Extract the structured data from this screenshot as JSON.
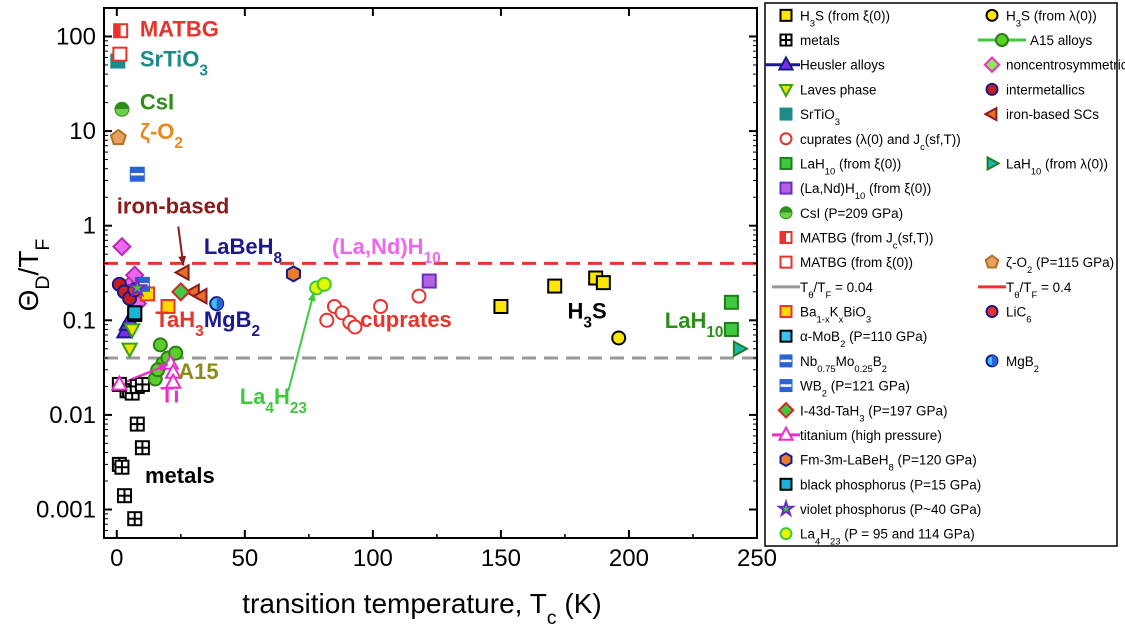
{
  "chart_data": {
    "type": "scatter",
    "xlabel": "transition temperature, T_c (K)",
    "ylabel": "Θ_D/T_F",
    "xlim": [
      -5,
      250
    ],
    "ylim": [
      0.0005,
      200
    ],
    "xscale": "linear",
    "yscale": "log",
    "xticks": [
      0,
      50,
      100,
      150,
      200,
      250
    ],
    "yticks": [
      0.001,
      0.01,
      0.1,
      1,
      10,
      100
    ],
    "ytick_labels": [
      "0.001",
      "0.01",
      "0.1",
      "1",
      "10",
      "100"
    ],
    "legend_position": "right",
    "reference_lines": [
      {
        "label": "T_θ/T_F = 0.04",
        "y": 0.04,
        "color": "#999999",
        "style": "dashed"
      },
      {
        "label": "T_θ/T_F = 0.4",
        "y": 0.4,
        "color": "#e8322b",
        "style": "dashed"
      }
    ],
    "series": [
      {
        "name": "H3S (from ξ(0))",
        "marker": "square",
        "fill": "#ffe600",
        "stroke": "#000000",
        "points": [
          [
            150,
            0.14
          ],
          [
            171,
            0.23
          ],
          [
            187,
            0.28
          ],
          [
            190,
            0.25
          ]
        ]
      },
      {
        "name": "H3S (from λ(0))",
        "marker": "circle",
        "fill": "#ffe600",
        "stroke": "#000000",
        "points": [
          [
            196,
            0.065
          ]
        ]
      },
      {
        "name": "metals",
        "marker": "grid",
        "fill": "#000000",
        "stroke": "#000000",
        "points": [
          [
            1,
            0.003
          ],
          [
            2,
            0.0028
          ],
          [
            3,
            0.0014
          ],
          [
            7,
            0.0008
          ],
          [
            8,
            0.008
          ],
          [
            10,
            0.0045
          ],
          [
            4,
            0.018
          ],
          [
            5,
            0.018
          ],
          [
            6,
            0.017
          ],
          [
            8,
            0.02
          ],
          [
            10,
            0.021
          ],
          [
            1,
            0.021
          ]
        ]
      },
      {
        "name": "A15 alloys",
        "marker": "circle",
        "fill": "#5ccd2b",
        "stroke": "#2d7f15",
        "points": [
          [
            17,
            0.055
          ],
          [
            18,
            0.035
          ],
          [
            20,
            0.04
          ],
          [
            23,
            0.045
          ],
          [
            15,
            0.024
          ],
          [
            16,
            0.03
          ]
        ]
      },
      {
        "name": "Heusler alloys",
        "marker": "triangle-up",
        "fill": "#7b2fe0",
        "stroke": "#1a1a8c",
        "points": [
          [
            3,
            0.075
          ],
          [
            4,
            0.09
          ],
          [
            5,
            0.1
          ]
        ]
      },
      {
        "name": "noncentrosymmetric",
        "marker": "diamond",
        "fill": "#ee67ee",
        "stroke": "#b52bb5",
        "points": [
          [
            2,
            0.6
          ],
          [
            4,
            0.22
          ],
          [
            6,
            0.25
          ],
          [
            7,
            0.3
          ],
          [
            5,
            0.18
          ],
          [
            8,
            0.15
          ]
        ]
      },
      {
        "name": "Laves phase",
        "marker": "triangle-down",
        "fill": "#e6e600",
        "stroke": "#3a9e1a",
        "points": [
          [
            5,
            0.05
          ],
          [
            6,
            0.08
          ]
        ]
      },
      {
        "name": "intermetallics",
        "marker": "circle",
        "fill": "#c71e1e",
        "stroke": "#1a1a8c",
        "points": [
          [
            1,
            0.24
          ],
          [
            3,
            0.2
          ],
          [
            5,
            0.17
          ]
        ]
      },
      {
        "name": "SrTiO3",
        "marker": "square",
        "fill": "#1d8a8a",
        "stroke": "#1d8a8a",
        "points": [
          [
            0.4,
            55
          ]
        ]
      },
      {
        "name": "iron-based SCs",
        "marker": "triangle-left",
        "fill": "#e66e2b",
        "stroke": "#8b1a1a",
        "points": [
          [
            26,
            0.32
          ],
          [
            30,
            0.2
          ],
          [
            33,
            0.18
          ]
        ]
      },
      {
        "name": "cuprates (λ(0) and J_c(sf,T))",
        "marker": "circle-open",
        "fill": "none",
        "stroke": "#e8322b",
        "points": [
          [
            82,
            0.1
          ],
          [
            85,
            0.14
          ],
          [
            88,
            0.12
          ],
          [
            91,
            0.095
          ],
          [
            93,
            0.085
          ],
          [
            103,
            0.14
          ],
          [
            118,
            0.18
          ]
        ]
      },
      {
        "name": "LaH10 (from ξ(0))",
        "marker": "square",
        "fill": "#3ec93e",
        "stroke": "#1e7f1e",
        "points": [
          [
            240,
            0.155
          ],
          [
            240,
            0.08
          ]
        ]
      },
      {
        "name": "LaH10 (from λ(0))",
        "marker": "triangle-right",
        "fill": "#1ab5b5",
        "stroke": "#1e7f1e",
        "points": [
          [
            243,
            0.05
          ]
        ]
      },
      {
        "name": "(La,Nd)H10 (from ξ(0))",
        "marker": "square",
        "fill": "#b561e6",
        "stroke": "#6b2fbf",
        "points": [
          [
            122,
            0.26
          ]
        ]
      },
      {
        "name": "CsI (P=209 GPa)",
        "marker": "half-circle",
        "fill": "#2d8f1a",
        "stroke": "#2d8f1a",
        "points": [
          [
            2,
            17
          ]
        ]
      },
      {
        "name": "MATBG (from J_c(sf,T))",
        "marker": "half-square",
        "fill": "#e8322b",
        "stroke": "#e8322b",
        "points": [
          [
            1.5,
            115
          ]
        ]
      },
      {
        "name": "MATBG (from ξ(0))",
        "marker": "square-open",
        "fill": "#ffffff",
        "stroke": "#e8322b",
        "points": [
          [
            1.2,
            65
          ]
        ]
      },
      {
        "name": "ζ-O2 (P=115 GPa)",
        "marker": "pentagon",
        "fill": "#e8a060",
        "stroke": "#b0702a",
        "points": [
          [
            0.6,
            8.5
          ]
        ]
      },
      {
        "name": "Ba1-xKxBiO3",
        "marker": "square",
        "fill": "#ffd700",
        "stroke": "#e8322b",
        "points": [
          [
            12,
            0.19
          ],
          [
            20,
            0.14
          ]
        ]
      },
      {
        "name": "LiC6",
        "marker": "circle",
        "fill": "#e8322b",
        "stroke": "#1a1a8c",
        "points": [
          [
            7,
            0.21
          ]
        ]
      },
      {
        "name": "α-MoB2 (P=110 GPa)",
        "marker": "square",
        "fill": "#39c0ef",
        "stroke": "#000000",
        "points": [
          [
            7,
            0.115
          ]
        ]
      },
      {
        "name": "Nb0.75Mo0.25B2",
        "marker": "half-square-blue",
        "fill": "#2a63d6",
        "stroke": "#2a63d6",
        "points": [
          [
            10,
            0.24
          ]
        ]
      },
      {
        "name": "MgB2",
        "marker": "half-circle-blue",
        "fill": "#2a63d6",
        "stroke": "#1a1a8c",
        "points": [
          [
            39,
            0.15
          ]
        ]
      },
      {
        "name": "WB2 (P=121 GPa)",
        "marker": "half-square-blue",
        "fill": "#2a63d6",
        "stroke": "#2a63d6",
        "points": [
          [
            8,
            3.5
          ]
        ]
      },
      {
        "name": "I-43d-TaH3 (P=197 GPa)",
        "marker": "diamond",
        "fill": "#3ec93e",
        "stroke": "#d12a2a",
        "points": [
          [
            25,
            0.2
          ]
        ]
      },
      {
        "name": "titanium (high pressure)",
        "marker": "triangle-up-open",
        "fill": "#ffffff",
        "stroke": "#ee2dc8",
        "points": [
          [
            1,
            0.021
          ],
          [
            21,
            0.035
          ],
          [
            22,
            0.028
          ],
          [
            22,
            0.022
          ]
        ]
      },
      {
        "name": "Fm-3m-LaBeH8 (P=120 GPa)",
        "marker": "hexagon",
        "fill": "#e67e2b",
        "stroke": "#1a1a8c",
        "points": [
          [
            69,
            0.31
          ]
        ]
      },
      {
        "name": "black phosphorus (P=15 GPa)",
        "marker": "square",
        "fill": "#1ab5d6",
        "stroke": "#000000",
        "points": [
          [
            7,
            0.12
          ]
        ]
      },
      {
        "name": "violet phosphorus (P~40 GPa)",
        "marker": "star",
        "fill": "#3ec93e",
        "stroke": "#6b2fbf",
        "points": [
          [
            8,
            0.22
          ]
        ]
      },
      {
        "name": "La4H23 (P = 95 and 114 GPa)",
        "marker": "circle",
        "fill": "#e6f500",
        "stroke": "#3ec93e",
        "points": [
          [
            78,
            0.22
          ],
          [
            81,
            0.24
          ]
        ]
      }
    ],
    "annotations": [
      {
        "text": "MATBG",
        "color": "#e8322b",
        "x": 9,
        "y": 100,
        "anchor": "left"
      },
      {
        "text": "SrTiO3",
        "color": "#1d8a8a",
        "x": 9,
        "y": 48,
        "anchor": "left"
      },
      {
        "text": "CsI",
        "color": "#2d8f1a",
        "x": 9,
        "y": 17,
        "anchor": "left"
      },
      {
        "text": "ζ-O2",
        "color": "#e8891e",
        "x": 9,
        "y": 8.2,
        "anchor": "left"
      },
      {
        "text": "iron-based",
        "color": "#8b1a1a",
        "x": 0,
        "y": 1.35,
        "anchor": "left"
      },
      {
        "text": "LaBeH8",
        "color": "#1a1a8c",
        "x": 34,
        "y": 0.5,
        "anchor": "left"
      },
      {
        "text": "(La,Nd)H10",
        "color": "#ee67ee",
        "x": 84,
        "y": 0.5,
        "anchor": "left"
      },
      {
        "text": "TaH3",
        "color": "#e8322b",
        "x": 15,
        "y": 0.085,
        "anchor": "left"
      },
      {
        "text": "MgB2",
        "color": "#1a1a8c",
        "x": 34,
        "y": 0.085,
        "anchor": "left"
      },
      {
        "text": "cuprates",
        "color": "#e8322b",
        "x": 95,
        "y": 0.085,
        "anchor": "left"
      },
      {
        "text": "H3S",
        "color": "#000000",
        "x": 176,
        "y": 0.105,
        "anchor": "left"
      },
      {
        "text": "LaH10",
        "color": "#2d8f1a",
        "x": 214,
        "y": 0.083,
        "anchor": "left"
      },
      {
        "text": "A15",
        "color": "#8b8b1a",
        "x": 24,
        "y": 0.024,
        "anchor": "left"
      },
      {
        "text": "La4H23",
        "color": "#3ec93e",
        "x": 48,
        "y": 0.013,
        "anchor": "left"
      },
      {
        "text": "Ti",
        "color": "#ee2dc8",
        "x": 17,
        "y": 0.0135,
        "anchor": "left"
      },
      {
        "text": "metals",
        "color": "#000000",
        "x": 11,
        "y": 0.0019,
        "anchor": "left"
      }
    ],
    "legend": [
      {
        "label": "H3S (from ξ(0))",
        "marker": "square",
        "fill": "#ffe600",
        "stroke": "#000000"
      },
      {
        "label": "H3S (from λ(0))",
        "marker": "circle",
        "fill": "#ffe600",
        "stroke": "#000000"
      },
      {
        "label": "metals",
        "marker": "grid",
        "fill": "#000000",
        "stroke": "#000000"
      },
      {
        "label": "A15 alloys",
        "marker": "circle-line",
        "fill": "#5ccd2b",
        "stroke": "#2d7f15"
      },
      {
        "label": "Heusler alloys",
        "marker": "triangle-line",
        "fill": "#7b2fe0",
        "stroke": "#1a1a8c"
      },
      {
        "label": "noncentrosymmetric",
        "marker": "diamond",
        "fill": "#8ee65a",
        "stroke": "#ee2dc8"
      },
      {
        "label": "Laves phase",
        "marker": "triangle-down",
        "fill": "#e6e600",
        "stroke": "#3a9e1a"
      },
      {
        "label": "intermetallics",
        "marker": "circle",
        "fill": "#c71e1e",
        "stroke": "#1a1a8c"
      },
      {
        "label": "SrTiO3",
        "marker": "square",
        "fill": "#1d8a8a",
        "stroke": "#1d8a8a"
      },
      {
        "label": "iron-based SCs",
        "marker": "triangle-left",
        "fill": "#e66e2b",
        "stroke": "#8b1a1a"
      },
      {
        "label": "cuprates (λ(0) and J_c(sf,T))",
        "marker": "circle-open",
        "fill": "none",
        "stroke": "#e8322b"
      },
      {
        "label": "LaH10 (from ξ(0))",
        "marker": "square",
        "fill": "#3ec93e",
        "stroke": "#1e7f1e"
      },
      {
        "label": "LaH10 (from λ(0))",
        "marker": "triangle-right",
        "fill": "#1ab5b5",
        "stroke": "#1e7f1e"
      },
      {
        "label": "(La,Nd)H10 (from ξ(0))",
        "marker": "square",
        "fill": "#b561e6",
        "stroke": "#6b2fbf"
      },
      {
        "label": "CsI (P=209 GPa)",
        "marker": "half-circle",
        "fill": "#2d8f1a",
        "stroke": "#2d8f1a"
      },
      {
        "label": "MATBG (from J_c(sf,T))",
        "marker": "half-square",
        "fill": "#e8322b",
        "stroke": "#e8322b"
      },
      {
        "label": "MATBG (from ξ(0))",
        "marker": "square-open",
        "fill": "#ffffff",
        "stroke": "#e8322b"
      },
      {
        "label": "ζ-O2 (P=115 GPa)",
        "marker": "pentagon",
        "fill": "#e8a060",
        "stroke": "#b0702a"
      },
      {
        "label": "T_θ/T_F = 0.04",
        "marker": "dash",
        "fill": "none",
        "stroke": "#999999"
      },
      {
        "label": "T_θ/T_F = 0.4",
        "marker": "dash",
        "fill": "none",
        "stroke": "#e8322b"
      },
      {
        "label": "Ba1-xKxBiO3",
        "marker": "square",
        "fill": "#ffd700",
        "stroke": "#e8322b"
      },
      {
        "label": "LiC6",
        "marker": "circle",
        "fill": "#e8322b",
        "stroke": "#1a1a8c"
      },
      {
        "label": "α-MoB2 (P=110 GPa)",
        "marker": "square",
        "fill": "#39c0ef",
        "stroke": "#000000"
      },
      {
        "label": "Nb0.75Mo0.25B2",
        "marker": "half-square-blue",
        "fill": "#2a63d6",
        "stroke": "#2a63d6"
      },
      {
        "label": "MgB2",
        "marker": "half-circle-blue",
        "fill": "#2a63d6",
        "stroke": "#1a1a8c"
      },
      {
        "label": "WB2 (P=121 GPa)",
        "marker": "half-square-blue",
        "fill": "#2a63d6",
        "stroke": "#2a63d6"
      },
      {
        "label": "I-43d-TaH3 (P=197 GPa)",
        "marker": "diamond",
        "fill": "#3ec93e",
        "stroke": "#d12a2a"
      },
      {
        "label": "titanium (high pressure)",
        "marker": "triangle-line-open",
        "fill": "#ffffff",
        "stroke": "#ee2dc8"
      },
      {
        "label": "Fm-3m-LaBeH8 (P=120 GPa)",
        "marker": "hexagon",
        "fill": "#e67e2b",
        "stroke": "#1a1a8c"
      },
      {
        "label": "black phosphorus (P=15 GPa)",
        "marker": "square",
        "fill": "#1ab5d6",
        "stroke": "#000000"
      },
      {
        "label": "violet phosphorus (P~40 GPa)",
        "marker": "star",
        "fill": "#3ec93e",
        "stroke": "#6b2fbf"
      },
      {
        "label": "La4H23 (P = 95 and 114 GPa)",
        "marker": "circle",
        "fill": "#e6f500",
        "stroke": "#3ec93e"
      }
    ]
  }
}
